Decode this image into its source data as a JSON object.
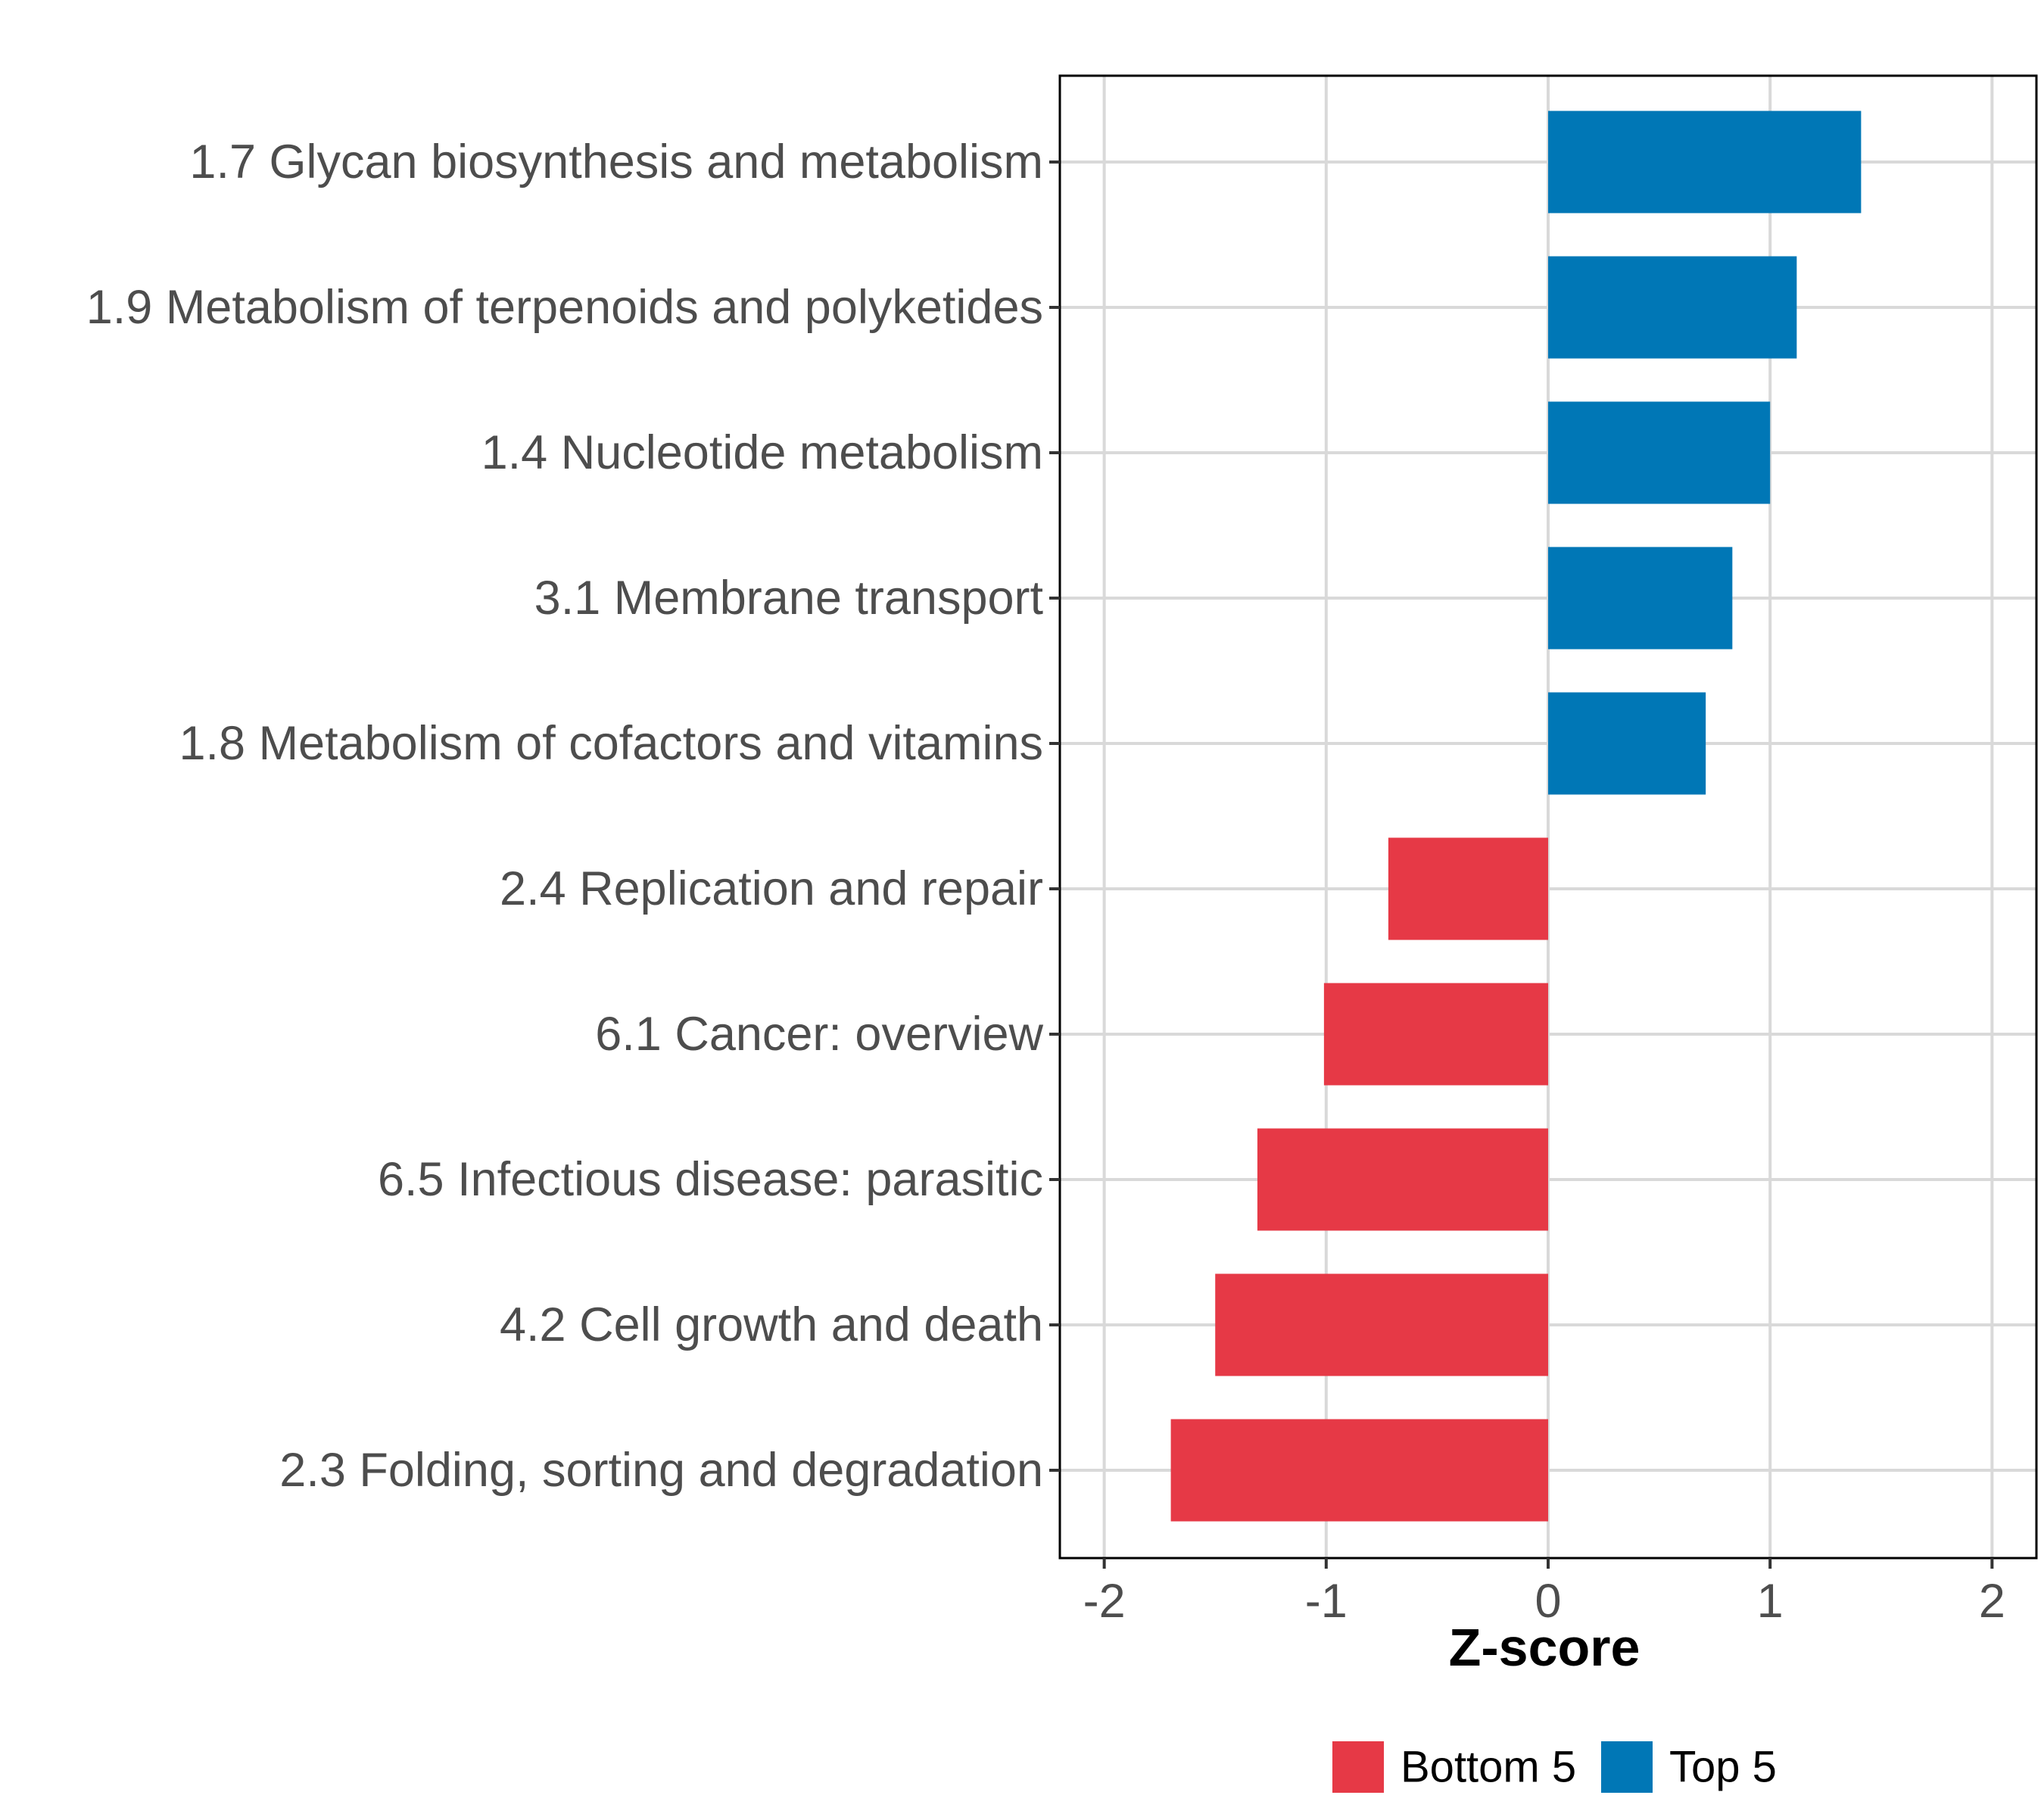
{
  "chart_data": {
    "type": "bar",
    "orientation": "horizontal",
    "title": "",
    "xlabel": "Z-score",
    "ylabel": "",
    "xlim": [
      -2.2,
      2.2
    ],
    "xticks": [
      -2,
      -1,
      0,
      1,
      2
    ],
    "xtick_labels": [
      "-2",
      "-1",
      "0",
      "1",
      "2"
    ],
    "grid": true,
    "legend_position": "bottom",
    "categories": [
      "1.7 Glycan biosynthesis and metabolism",
      "1.9 Metabolism of terpenoids and polyketides",
      "1.4 Nucleotide metabolism",
      "3.1 Membrane transport",
      "1.8 Metabolism of cofactors and vitamins",
      "2.4 Replication and repair",
      "6.1 Cancer: overview",
      "6.5 Infectious disease: parasitic",
      "4.2 Cell growth and death",
      "2.3 Folding, sorting and degradation"
    ],
    "values": [
      1.41,
      1.12,
      1.0,
      0.83,
      0.71,
      -0.72,
      -1.01,
      -1.31,
      -1.5,
      -1.7
    ],
    "groups": [
      "Top 5",
      "Top 5",
      "Top 5",
      "Top 5",
      "Top 5",
      "Bottom 5",
      "Bottom 5",
      "Bottom 5",
      "Bottom 5",
      "Bottom 5"
    ],
    "legend": [
      {
        "name": "Bottom 5",
        "color": "#e63946"
      },
      {
        "name": "Top 5",
        "color": "#0077b6"
      }
    ]
  }
}
